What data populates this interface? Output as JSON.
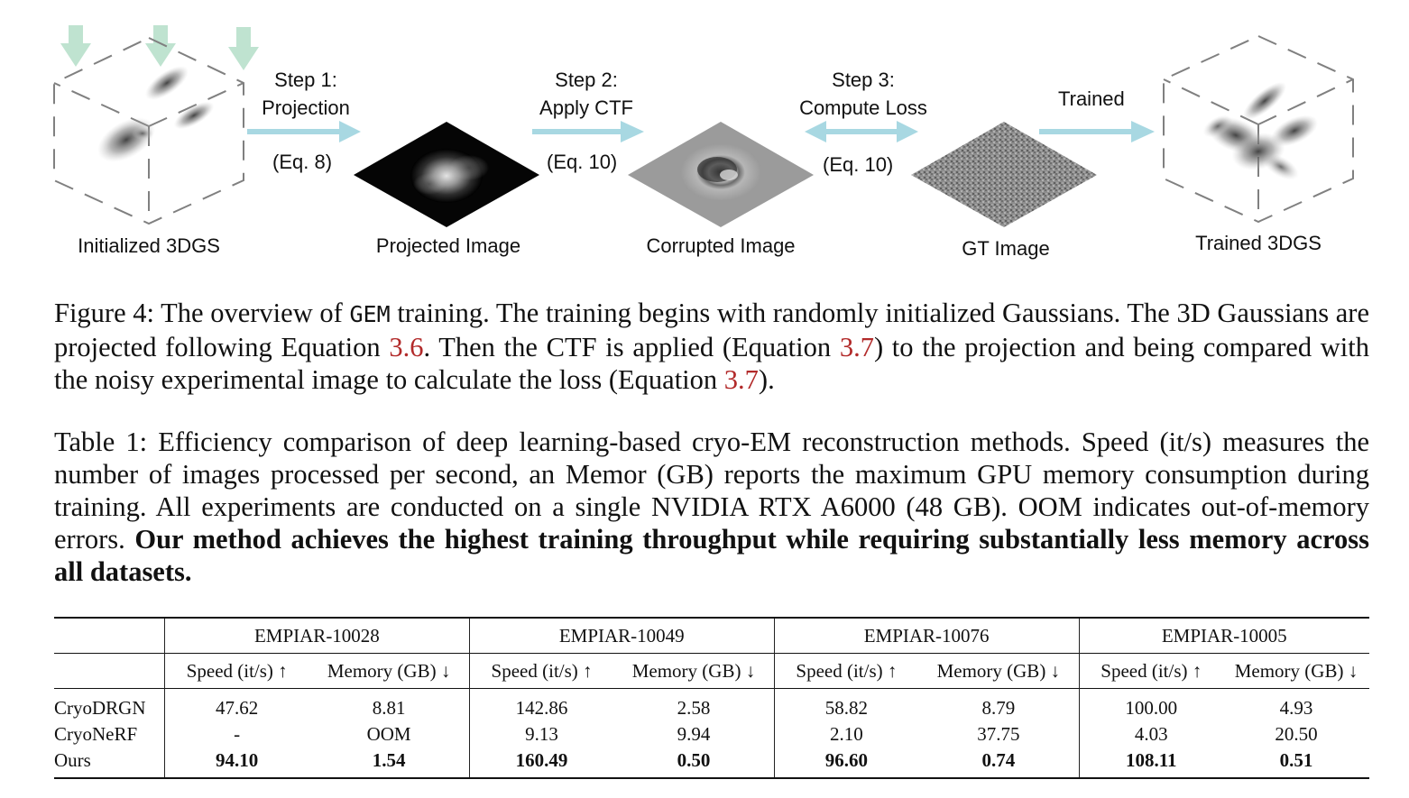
{
  "figure": {
    "labels": {
      "initialized": "Initialized 3DGS",
      "projected": "Projected Image",
      "corrupted": "Corrupted Image",
      "gt": "GT Image",
      "trained": "Trained 3DGS"
    },
    "steps": {
      "step1_line1": "Step 1:",
      "step1_line2": "Projection",
      "step1_eq": "(Eq. 8)",
      "step2_line1": "Step 2:",
      "step2_line2": "Apply CTF",
      "step2_eq": "(Eq. 10)",
      "step3_line1": "Step 3:",
      "step3_line2": "Compute Loss",
      "step3_eq": "(Eq. 10)",
      "trained": "Trained"
    },
    "colors": {
      "arrow": "#a8d8e2",
      "down_arrow": "#bfe3d0",
      "cube_dash": "#808080"
    }
  },
  "figure_caption": {
    "prefix": "Figure 4: The overview of ",
    "code": "GEM",
    "text1": " training. The training begins with randomly initialized Gaussians. The 3D Gaussians are projected following Equation ",
    "ref1": "3.6",
    "text2": ". Then the CTF is applied (Equation ",
    "ref2": "3.7",
    "text3": ") to the projection and being compared with the noisy experimental image to calculate the loss (Equation ",
    "ref3": "3.7",
    "text4": ")."
  },
  "table_caption": {
    "text": "Table 1: Efficiency comparison of deep learning-based cryo-EM reconstruction methods. Speed (it/s) measures the number of images processed per second, an Memor (GB) reports the maximum GPU memory consumption during training. All experiments are conducted on a single NVIDIA RTX A6000 (48 GB). OOM indicates out-of-memory errors. ",
    "bold": "Our method achieves the highest training throughput while requiring substantially less memory across all datasets."
  },
  "table": {
    "datasets": [
      "EMPIAR-10028",
      "EMPIAR-10049",
      "EMPIAR-10076",
      "EMPIAR-10005"
    ],
    "speed_header": "Speed (it/s) ↑",
    "memory_header": "Memory (GB) ↓",
    "rows": [
      {
        "method": "CryoDRGN",
        "values": [
          "47.62",
          "8.81",
          "142.86",
          "2.58",
          "58.82",
          "8.79",
          "100.00",
          "4.93"
        ],
        "bold": false
      },
      {
        "method": "CryoNeRF",
        "values": [
          "-",
          "OOM",
          "9.13",
          "9.94",
          "2.10",
          "37.75",
          "4.03",
          "20.50"
        ],
        "bold": false
      },
      {
        "method": "Ours",
        "values": [
          "94.10",
          "1.54",
          "160.49",
          "0.50",
          "96.60",
          "0.74",
          "108.11",
          "0.51"
        ],
        "bold": true
      }
    ]
  }
}
